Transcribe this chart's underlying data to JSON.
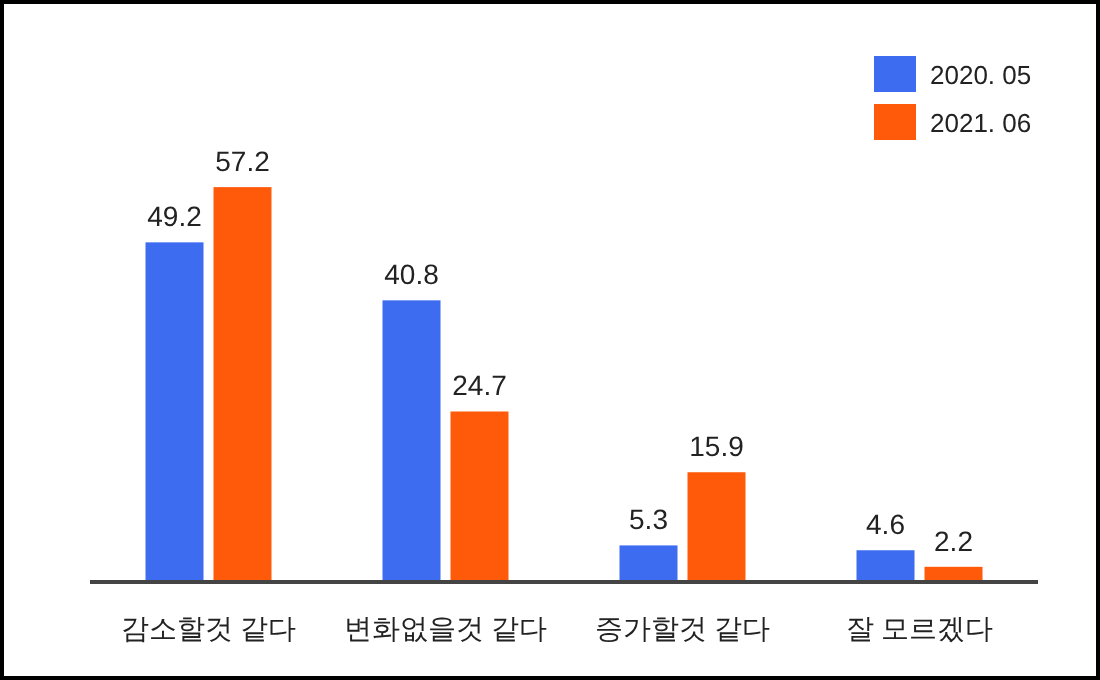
{
  "chart_data": {
    "type": "bar",
    "categories": [
      "감소할것 같다",
      "변화없을것 같다",
      "증가할것 같다",
      "잘 모르겠다"
    ],
    "series": [
      {
        "name": "2020. 05",
        "color": "#3d6cf0",
        "values": [
          49.2,
          40.8,
          5.3,
          4.6
        ]
      },
      {
        "name": "2021. 06",
        "color": "#ff5a0a",
        "values": [
          57.2,
          24.7,
          15.9,
          2.2
        ]
      }
    ],
    "data_labels": true,
    "legend": "top right"
  }
}
